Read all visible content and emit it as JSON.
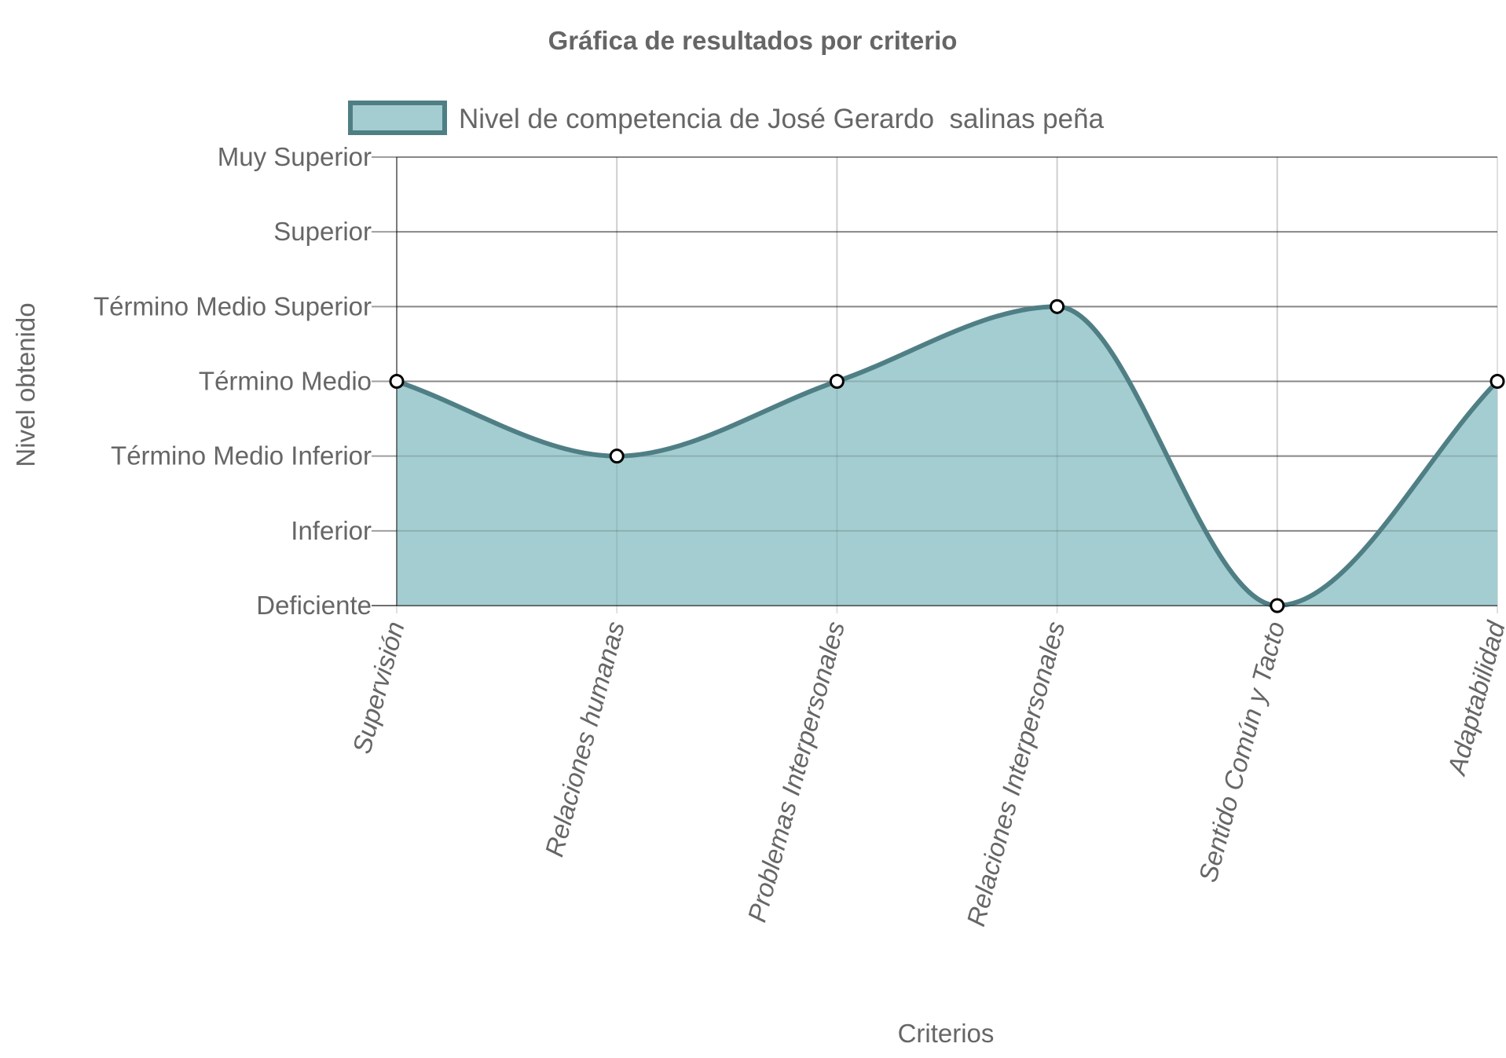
{
  "chart_data": {
    "type": "area",
    "title": "Gráfica de resultados por criterio",
    "xlabel": "Criterios",
    "ylabel": "Nivel obtenido",
    "categories": [
      "Supervisión",
      "Relaciones humanas",
      "Problemas Interpersonales",
      "Relaciones Interpersonales",
      "Sentido Común y Tacto",
      "Adaptabilidad"
    ],
    "y_levels": [
      "Deficiente",
      "Inferior",
      "Término Medio Inferior",
      "Término Medio",
      "Término Medio Superior",
      "Superior",
      "Muy Superior"
    ],
    "ylim": [
      1,
      7
    ],
    "series": [
      {
        "name": "Nivel de competencia de José Gerardo  salinas peña",
        "values": [
          4,
          3,
          4,
          5,
          1,
          4
        ],
        "value_labels": [
          "Término Medio",
          "Término Medio Inferior",
          "Término Medio",
          "Término Medio Superior",
          "Deficiente",
          "Término Medio"
        ],
        "line_color": "#4f7f85",
        "fill_color": "#a3cdd0"
      }
    ],
    "grid": true,
    "legend_position": "top",
    "smooth": true
  }
}
